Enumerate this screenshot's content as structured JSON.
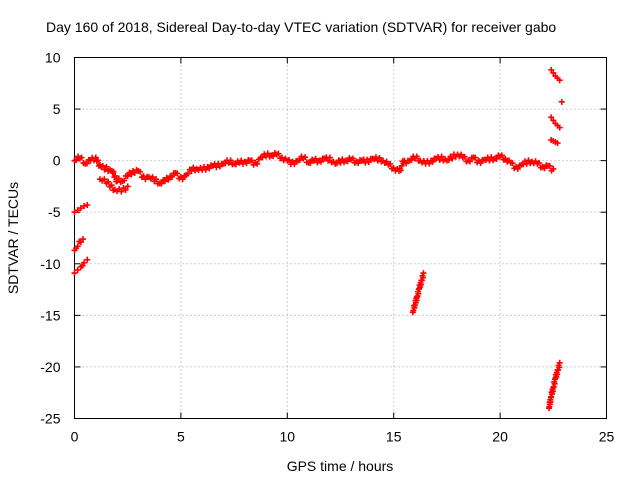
{
  "chart_data": {
    "type": "scatter",
    "title": "Day 160 of 2018, Sidereal Day-to-day VTEC variation (SDTVAR) for receiver gabo",
    "xlabel": "GPS time / hours",
    "ylabel": "SDTVAR / TECUs",
    "xlim": [
      0,
      25
    ],
    "ylim": [
      -25,
      10
    ],
    "x_ticks": [
      0,
      5,
      10,
      15,
      20,
      25
    ],
    "y_ticks": [
      10,
      5,
      0,
      -5,
      -10,
      -15,
      -20,
      -25
    ],
    "grid": true,
    "marker": "+",
    "color": "#ff0000",
    "series": [
      {
        "name": "SDTVAR",
        "segments": [
          {
            "x": [
              0.0,
              0.25,
              0.5,
              0.75,
              1.0,
              1.25,
              1.5,
              1.75,
              2.0,
              2.25,
              2.5,
              2.75,
              3.0,
              3.25,
              3.5,
              3.75,
              4.0,
              4.25,
              4.5,
              4.75,
              5.0,
              5.25,
              5.5,
              5.75,
              6.0,
              6.25,
              6.5,
              6.75,
              7.0,
              7.25,
              7.5,
              7.75,
              8.0,
              8.25,
              8.5,
              8.75,
              9.0,
              9.25,
              9.5,
              9.75,
              10.0,
              10.25,
              10.5,
              10.75,
              11.0,
              11.25,
              11.5,
              11.75,
              12.0,
              12.25,
              12.5,
              12.75,
              13.0,
              13.25,
              13.5,
              13.75,
              14.0,
              14.25,
              14.5,
              14.75,
              15.0,
              15.25,
              15.5,
              15.75,
              16.0,
              16.25,
              16.5,
              16.75,
              17.0,
              17.25,
              17.5,
              17.75,
              18.0,
              18.25,
              18.5,
              18.75,
              19.0,
              19.25,
              19.5,
              19.75,
              20.0,
              20.25,
              20.5,
              20.75,
              21.0,
              21.25,
              21.5,
              21.75,
              22.0,
              22.25,
              22.5
            ],
            "y": [
              0.0,
              0.2,
              -0.3,
              0.0,
              0.3,
              -0.6,
              -0.6,
              -1.0,
              -2.0,
              -2.0,
              -1.5,
              -1.0,
              -1.0,
              -1.5,
              -1.6,
              -2.0,
              -2.2,
              -2.0,
              -1.5,
              -1.2,
              -1.6,
              -1.4,
              -1.0,
              -0.8,
              -0.9,
              -0.6,
              -0.5,
              -0.3,
              -0.3,
              -0.2,
              -0.3,
              -0.2,
              -0.1,
              0.0,
              -0.2,
              0.3,
              0.4,
              0.5,
              0.6,
              0.3,
              0.0,
              -0.1,
              0.0,
              0.2,
              -0.2,
              0.0,
              0.0,
              0.2,
              0.3,
              -0.3,
              -0.2,
              0.0,
              0.1,
              -0.1,
              0.0,
              0.1,
              0.2,
              0.0,
              0.0,
              -0.4,
              -0.7,
              -1.0,
              0.0,
              0.0,
              0.2,
              0.0,
              -0.3,
              0.0,
              0.2,
              0.4,
              0.0,
              0.2,
              0.6,
              0.3,
              0.0,
              0.3,
              0.0,
              0.1,
              0.0,
              0.2,
              0.4,
              0.2,
              -0.2,
              -0.6,
              -0.4,
              -0.3,
              -0.1,
              -0.3,
              -0.6,
              -0.5,
              -0.8
            ]
          },
          {
            "x": [
              1.2,
              1.5,
              1.9,
              2.2,
              2.5
            ],
            "y": [
              -1.8,
              -2.2,
              -2.8,
              -3.0,
              -2.5
            ]
          },
          {
            "x": [
              0.0,
              0.15,
              0.3,
              0.45,
              0.6
            ],
            "y": [
              -5.0,
              -4.8,
              -4.6,
              -4.4,
              -4.3
            ]
          },
          {
            "x": [
              0.0,
              0.15,
              0.3,
              0.4
            ],
            "y": [
              -8.7,
              -8.3,
              -7.9,
              -7.6
            ]
          },
          {
            "x": [
              0.0,
              0.15,
              0.3,
              0.45,
              0.6
            ],
            "y": [
              -10.9,
              -10.6,
              -10.3,
              -9.9,
              -9.6
            ]
          },
          {
            "x": [
              15.9,
              16.0,
              16.1,
              16.2,
              16.3,
              16.4
            ],
            "y": [
              -14.7,
              -14.0,
              -13.2,
              -12.4,
              -11.6,
              -10.9
            ]
          },
          {
            "x": [
              22.3,
              22.4,
              22.5,
              22.6,
              22.7,
              22.8
            ],
            "y": [
              -24.0,
              -22.9,
              -22.0,
              -21.1,
              -20.3,
              -19.6
            ]
          },
          {
            "x": [
              22.4,
              22.5,
              22.6,
              22.7,
              22.8
            ],
            "y": [
              8.8,
              8.5,
              8.2,
              8.0,
              7.8
            ]
          },
          {
            "x": [
              22.4,
              22.5,
              22.6,
              22.7,
              22.8
            ],
            "y": [
              4.2,
              3.9,
              3.6,
              3.4,
              3.2
            ]
          },
          {
            "x": [
              22.4,
              22.5,
              22.6,
              22.7
            ],
            "y": [
              2.0,
              1.9,
              1.8,
              1.7
            ]
          },
          {
            "x": [
              22.9
            ],
            "y": [
              5.7
            ]
          }
        ]
      }
    ]
  }
}
